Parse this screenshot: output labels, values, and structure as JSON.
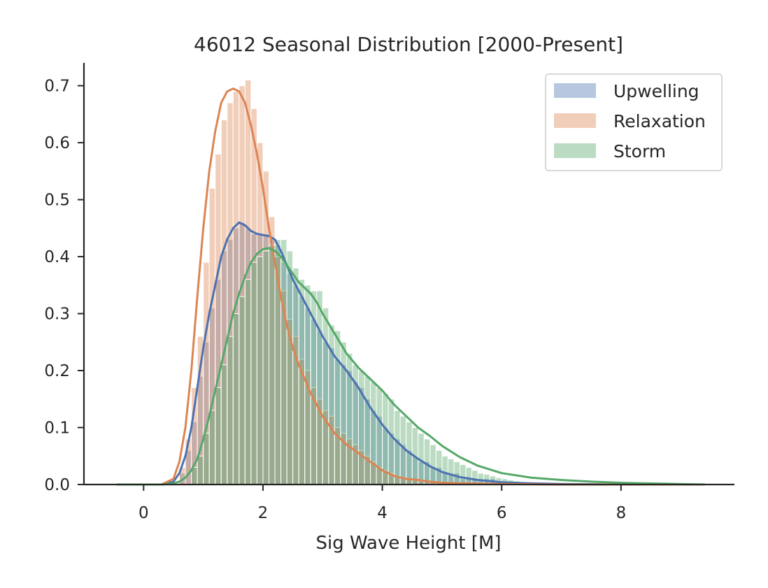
{
  "chart_data": {
    "type": "histogram+kde",
    "title": "46012 Seasonal Distribution [2000-Present]",
    "xlabel": "Sig Wave Height [M]",
    "ylabel": "",
    "xlim": [
      -1.0,
      9.9
    ],
    "ylim": [
      0.0,
      0.74
    ],
    "xticks": [
      0,
      2,
      4,
      6,
      8
    ],
    "yticks": [
      0.0,
      0.1,
      0.2,
      0.3,
      0.4,
      0.5,
      0.6,
      0.7
    ],
    "ytick_labels": [
      "0.0",
      "0.1",
      "0.2",
      "0.3",
      "0.4",
      "0.5",
      "0.6",
      "0.7"
    ],
    "grid": false,
    "legend_position": "top-right",
    "series": [
      {
        "name": "Upwelling",
        "color": "#4c72b0",
        "kde_x": [
          -0.45,
          0.3,
          0.5,
          0.6,
          0.7,
          0.8,
          0.9,
          1.0,
          1.1,
          1.2,
          1.3,
          1.4,
          1.5,
          1.6,
          1.7,
          1.8,
          1.9,
          2.0,
          2.1,
          2.2,
          2.3,
          2.4,
          2.5,
          2.6,
          2.7,
          2.8,
          2.9,
          3.0,
          3.2,
          3.4,
          3.6,
          3.8,
          4.0,
          4.2,
          4.4,
          4.6,
          4.8,
          5.0,
          5.3,
          5.6,
          6.0,
          6.5,
          7.0,
          8.0,
          9.4
        ],
        "kde_y": [
          0.0,
          0.0,
          0.005,
          0.02,
          0.05,
          0.1,
          0.17,
          0.24,
          0.3,
          0.35,
          0.4,
          0.43,
          0.45,
          0.46,
          0.455,
          0.445,
          0.44,
          0.438,
          0.436,
          0.43,
          0.41,
          0.385,
          0.36,
          0.34,
          0.32,
          0.3,
          0.28,
          0.26,
          0.225,
          0.2,
          0.17,
          0.135,
          0.105,
          0.08,
          0.06,
          0.045,
          0.032,
          0.022,
          0.013,
          0.008,
          0.004,
          0.002,
          0.001,
          0.0,
          0.0
        ],
        "bins": [
          0.6,
          0.7,
          0.8,
          0.9,
          1.0,
          1.1,
          1.2,
          1.3,
          1.4,
          1.5,
          1.6,
          1.7,
          1.8,
          1.9,
          2.0,
          2.1,
          2.2,
          2.3,
          2.4,
          2.5,
          2.6,
          2.7,
          2.8,
          2.9,
          3.0,
          3.1,
          3.2,
          3.3,
          3.4,
          3.5,
          3.6,
          3.7,
          3.8,
          3.9,
          4.0,
          4.1,
          4.2,
          4.3,
          4.4,
          4.5,
          4.6,
          4.7,
          4.8,
          4.9,
          5.0,
          5.1,
          5.2,
          5.3,
          5.4,
          5.5,
          5.6,
          5.7,
          5.8,
          5.9
        ],
        "values": [
          0.02,
          0.06,
          0.11,
          0.19,
          0.25,
          0.31,
          0.36,
          0.41,
          0.43,
          0.45,
          0.46,
          0.45,
          0.44,
          0.44,
          0.44,
          0.43,
          0.42,
          0.39,
          0.37,
          0.35,
          0.33,
          0.31,
          0.29,
          0.27,
          0.25,
          0.24,
          0.22,
          0.21,
          0.2,
          0.18,
          0.17,
          0.15,
          0.13,
          0.12,
          0.1,
          0.09,
          0.08,
          0.07,
          0.06,
          0.05,
          0.04,
          0.04,
          0.03,
          0.03,
          0.02,
          0.02,
          0.02,
          0.01,
          0.01,
          0.01,
          0.01,
          0.01,
          0.01,
          0.005
        ]
      },
      {
        "name": "Relaxation",
        "color": "#dd8452",
        "kde_x": [
          -0.45,
          0.3,
          0.5,
          0.6,
          0.7,
          0.8,
          0.9,
          1.0,
          1.1,
          1.2,
          1.3,
          1.4,
          1.5,
          1.6,
          1.7,
          1.8,
          1.9,
          2.0,
          2.1,
          2.2,
          2.3,
          2.4,
          2.5,
          2.6,
          2.7,
          2.8,
          2.9,
          3.0,
          3.2,
          3.4,
          3.6,
          3.8,
          4.0,
          4.2,
          4.4,
          4.6,
          4.8,
          5.0,
          5.4,
          6.0,
          7.0,
          8.0,
          9.4
        ],
        "kde_y": [
          0.0,
          0.0,
          0.01,
          0.04,
          0.1,
          0.2,
          0.33,
          0.45,
          0.55,
          0.62,
          0.67,
          0.69,
          0.695,
          0.69,
          0.67,
          0.63,
          0.58,
          0.52,
          0.45,
          0.39,
          0.33,
          0.28,
          0.24,
          0.21,
          0.185,
          0.16,
          0.14,
          0.12,
          0.09,
          0.07,
          0.055,
          0.04,
          0.025,
          0.015,
          0.01,
          0.008,
          0.005,
          0.003,
          0.002,
          0.001,
          0.0,
          0.0,
          0.0
        ],
        "bins": [
          0.6,
          0.7,
          0.8,
          0.9,
          1.0,
          1.1,
          1.2,
          1.3,
          1.4,
          1.5,
          1.6,
          1.7,
          1.8,
          1.9,
          2.0,
          2.1,
          2.2,
          2.3,
          2.4,
          2.5,
          2.6,
          2.7,
          2.8,
          2.9,
          3.0,
          3.1,
          3.2,
          3.3,
          3.4,
          3.5,
          3.6,
          3.7,
          3.8,
          3.9,
          4.0,
          4.1,
          4.2,
          4.3,
          4.4,
          4.5,
          4.6,
          4.7,
          4.8,
          4.9,
          5.0
        ],
        "values": [
          0.03,
          0.08,
          0.17,
          0.26,
          0.39,
          0.52,
          0.58,
          0.64,
          0.67,
          0.69,
          0.7,
          0.71,
          0.66,
          0.6,
          0.55,
          0.47,
          0.4,
          0.34,
          0.29,
          0.26,
          0.22,
          0.2,
          0.17,
          0.15,
          0.13,
          0.12,
          0.1,
          0.09,
          0.08,
          0.07,
          0.06,
          0.05,
          0.04,
          0.03,
          0.025,
          0.02,
          0.015,
          0.012,
          0.01,
          0.008,
          0.006,
          0.005,
          0.004,
          0.003,
          0.002
        ]
      },
      {
        "name": "Storm",
        "color": "#55a868",
        "kde_x": [
          -0.45,
          0.3,
          0.5,
          0.6,
          0.7,
          0.8,
          0.9,
          1.0,
          1.1,
          1.2,
          1.3,
          1.4,
          1.5,
          1.6,
          1.7,
          1.8,
          1.9,
          2.0,
          2.1,
          2.2,
          2.3,
          2.4,
          2.5,
          2.6,
          2.7,
          2.8,
          2.9,
          3.0,
          3.2,
          3.4,
          3.6,
          3.8,
          4.0,
          4.2,
          4.4,
          4.6,
          4.8,
          5.0,
          5.3,
          5.6,
          6.0,
          6.5,
          7.0,
          7.5,
          8.0,
          9.4
        ],
        "kde_y": [
          0.0,
          0.0,
          0.002,
          0.005,
          0.012,
          0.025,
          0.045,
          0.08,
          0.12,
          0.165,
          0.21,
          0.255,
          0.3,
          0.335,
          0.365,
          0.39,
          0.405,
          0.413,
          0.415,
          0.41,
          0.4,
          0.385,
          0.37,
          0.355,
          0.345,
          0.335,
          0.32,
          0.3,
          0.265,
          0.23,
          0.205,
          0.185,
          0.165,
          0.14,
          0.12,
          0.1,
          0.085,
          0.068,
          0.048,
          0.033,
          0.02,
          0.012,
          0.008,
          0.005,
          0.003,
          0.0
        ],
        "bins": [
          0.8,
          0.9,
          1.0,
          1.1,
          1.2,
          1.3,
          1.4,
          1.5,
          1.6,
          1.7,
          1.8,
          1.9,
          2.0,
          2.1,
          2.2,
          2.3,
          2.4,
          2.5,
          2.6,
          2.7,
          2.8,
          2.9,
          3.0,
          3.1,
          3.2,
          3.3,
          3.4,
          3.5,
          3.6,
          3.7,
          3.8,
          3.9,
          4.0,
          4.1,
          4.2,
          4.3,
          4.4,
          4.5,
          4.6,
          4.7,
          4.8,
          4.9,
          5.0,
          5.1,
          5.2,
          5.3,
          5.4,
          5.5,
          5.6,
          5.7,
          5.8,
          5.9,
          6.0,
          6.1,
          6.2
        ],
        "values": [
          0.03,
          0.05,
          0.09,
          0.13,
          0.17,
          0.21,
          0.26,
          0.3,
          0.33,
          0.36,
          0.39,
          0.4,
          0.41,
          0.42,
          0.43,
          0.43,
          0.41,
          0.38,
          0.36,
          0.35,
          0.34,
          0.34,
          0.31,
          0.28,
          0.27,
          0.25,
          0.23,
          0.21,
          0.2,
          0.19,
          0.18,
          0.17,
          0.16,
          0.15,
          0.13,
          0.12,
          0.11,
          0.1,
          0.09,
          0.08,
          0.07,
          0.06,
          0.05,
          0.045,
          0.04,
          0.035,
          0.03,
          0.025,
          0.02,
          0.018,
          0.015,
          0.012,
          0.01,
          0.008,
          0.006
        ]
      }
    ]
  }
}
